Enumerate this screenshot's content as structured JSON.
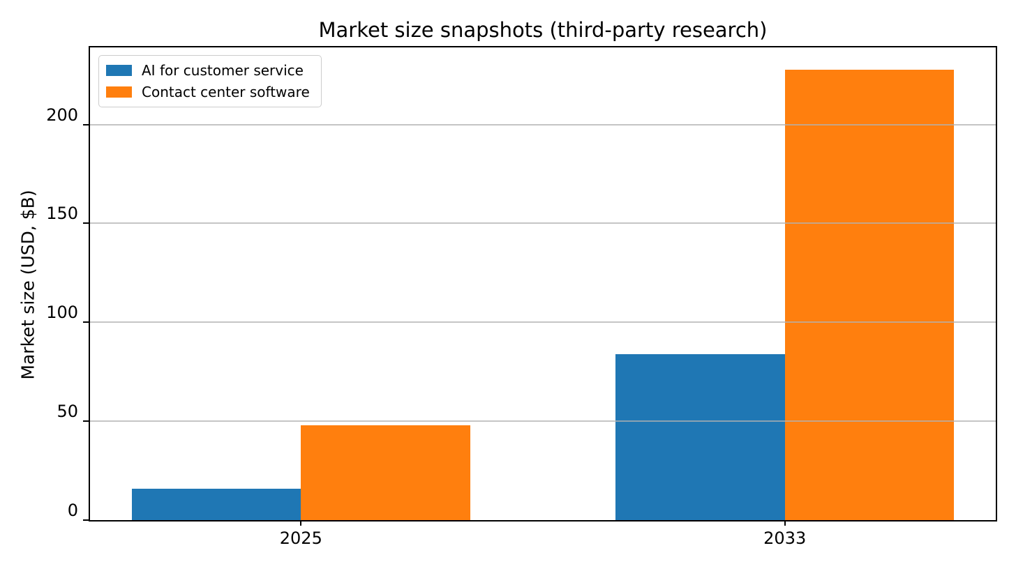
{
  "chart_data": {
    "type": "bar",
    "title": "Market size snapshots (third-party research)",
    "xlabel": "",
    "ylabel": "Market size (USD, $B)",
    "categories": [
      "2025",
      "2033"
    ],
    "series": [
      {
        "name": "AI for customer service",
        "color": "#1f77b4",
        "values": [
          15.8,
          83.8
        ]
      },
      {
        "name": "Contact center software",
        "color": "#ff7f0e",
        "values": [
          47.9,
          227.8
        ]
      }
    ],
    "yticks": [
      0,
      50,
      100,
      150,
      200
    ],
    "ylim": [
      0,
      239
    ],
    "grid": "horizontal-over-bars",
    "gridline_color": "#b2b2b2",
    "frame_color": "#000000",
    "background_color": "#ffffff",
    "legend_position": "upper-left"
  }
}
